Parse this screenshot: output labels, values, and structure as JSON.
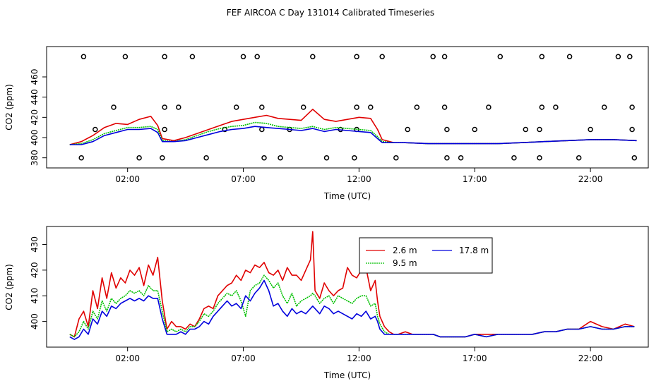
{
  "title": "FEF AIRCOA C  Day 131014  Calibrated Timeseries",
  "colors": {
    "red": "#e00000",
    "green": "#00c000",
    "blue": "#0000dd",
    "axis": "#000000",
    "marker": "#000000"
  },
  "chart_data": [
    {
      "type": "line",
      "xlabel": "Time (UTC)",
      "ylabel": "CO2 (ppm)",
      "xlim": [
        -1.5,
        24.5
      ],
      "ylim": [
        370,
        490
      ],
      "x_tick_values": [
        2,
        7,
        12,
        17,
        22
      ],
      "x_tick_labels": [
        "02:00",
        "07:00",
        "12:00",
        "17:00",
        "22:00"
      ],
      "y_tick_values": [
        380,
        400,
        420,
        440,
        460
      ],
      "y_tick_labels": [
        "380",
        "400",
        "420",
        "440",
        "460"
      ],
      "x": [
        -0.5,
        0.0,
        0.5,
        1.0,
        1.5,
        2.0,
        2.5,
        3.0,
        3.3,
        3.5,
        4.0,
        4.5,
        5.0,
        5.5,
        6.0,
        6.5,
        7.0,
        7.5,
        8.0,
        8.5,
        9.0,
        9.5,
        10.0,
        10.5,
        11.0,
        11.5,
        12.0,
        12.5,
        12.8,
        13.0,
        13.5,
        14.0,
        15.0,
        16.0,
        17.0,
        18.0,
        19.0,
        20.0,
        21.0,
        22.0,
        23.0,
        24.0
      ],
      "series": [
        {
          "color": "red",
          "values": [
            393,
            396,
            402,
            410,
            414,
            413,
            418,
            421,
            412,
            399,
            397,
            400,
            404,
            408,
            412,
            416,
            418,
            420,
            422,
            419,
            418,
            417,
            428,
            418,
            416,
            418,
            420,
            419,
            408,
            398,
            395,
            395,
            394,
            394,
            394,
            394,
            395,
            396,
            397,
            398,
            398,
            397
          ]
        },
        {
          "color": "green",
          "values": [
            393,
            394,
            398,
            404,
            407,
            410,
            410,
            411,
            408,
            397,
            396,
            398,
            402,
            406,
            409,
            411,
            412,
            415,
            414,
            411,
            410,
            409,
            411,
            408,
            410,
            409,
            408,
            407,
            401,
            396,
            395,
            395,
            394,
            394,
            394,
            394,
            395,
            396,
            397,
            398,
            398,
            397
          ]
        },
        {
          "color": "blue",
          "values": [
            393,
            393,
            396,
            402,
            405,
            408,
            408,
            409,
            405,
            396,
            396,
            397,
            400,
            403,
            406,
            408,
            409,
            411,
            410,
            409,
            408,
            407,
            409,
            406,
            408,
            407,
            406,
            405,
            399,
            395,
            395,
            395,
            394,
            394,
            394,
            394,
            395,
            396,
            397,
            398,
            398,
            397
          ]
        }
      ],
      "markers": {
        "symbol": "circle",
        "color": "marker",
        "points": [
          [
            0.1,
            480
          ],
          [
            1.9,
            480
          ],
          [
            3.6,
            480
          ],
          [
            4.8,
            480
          ],
          [
            7.0,
            480
          ],
          [
            7.6,
            480
          ],
          [
            10.0,
            480
          ],
          [
            11.9,
            480
          ],
          [
            13.0,
            480
          ],
          [
            15.2,
            480
          ],
          [
            15.7,
            480
          ],
          [
            18.1,
            480
          ],
          [
            19.9,
            480
          ],
          [
            21.1,
            480
          ],
          [
            23.2,
            480
          ],
          [
            23.7,
            480
          ],
          [
            1.4,
            430
          ],
          [
            3.6,
            430
          ],
          [
            4.2,
            430
          ],
          [
            6.7,
            430
          ],
          [
            7.8,
            430
          ],
          [
            9.6,
            430
          ],
          [
            11.9,
            430
          ],
          [
            12.5,
            430
          ],
          [
            14.5,
            430
          ],
          [
            15.7,
            430
          ],
          [
            17.6,
            430
          ],
          [
            19.9,
            430
          ],
          [
            20.5,
            430
          ],
          [
            22.6,
            430
          ],
          [
            23.8,
            430
          ],
          [
            0.6,
            408
          ],
          [
            3.6,
            408
          ],
          [
            6.2,
            408
          ],
          [
            7.8,
            408
          ],
          [
            9.0,
            408
          ],
          [
            11.2,
            408
          ],
          [
            11.9,
            408
          ],
          [
            14.1,
            408
          ],
          [
            15.8,
            408
          ],
          [
            17.0,
            408
          ],
          [
            19.2,
            408
          ],
          [
            19.8,
            408
          ],
          [
            22.0,
            408
          ],
          [
            23.8,
            408
          ],
          [
            0.0,
            380
          ],
          [
            2.5,
            380
          ],
          [
            3.5,
            380
          ],
          [
            5.4,
            380
          ],
          [
            7.9,
            380
          ],
          [
            8.6,
            380
          ],
          [
            10.6,
            380
          ],
          [
            11.8,
            380
          ],
          [
            13.6,
            380
          ],
          [
            15.8,
            380
          ],
          [
            16.4,
            380
          ],
          [
            18.7,
            380
          ],
          [
            19.8,
            380
          ],
          [
            21.5,
            380
          ],
          [
            23.9,
            380
          ]
        ]
      }
    },
    {
      "type": "line",
      "xlabel": "Time (UTC)",
      "ylabel": "CO2 (ppm)",
      "xlim": [
        -1.5,
        24.5
      ],
      "ylim": [
        390,
        437
      ],
      "x_tick_values": [
        2,
        7,
        12,
        17,
        22
      ],
      "x_tick_labels": [
        "02:00",
        "07:00",
        "12:00",
        "17:00",
        "22:00"
      ],
      "y_tick_values": [
        400,
        410,
        420,
        430
      ],
      "y_tick_labels": [
        "400",
        "410",
        "420",
        "430"
      ],
      "legend_position": "top-center",
      "x": [
        -0.5,
        -0.3,
        -0.1,
        0.1,
        0.3,
        0.5,
        0.7,
        0.9,
        1.1,
        1.3,
        1.5,
        1.7,
        1.9,
        2.1,
        2.3,
        2.5,
        2.7,
        2.9,
        3.1,
        3.3,
        3.5,
        3.7,
        3.9,
        4.1,
        4.3,
        4.5,
        4.7,
        4.9,
        5.1,
        5.3,
        5.5,
        5.7,
        5.9,
        6.1,
        6.3,
        6.5,
        6.7,
        6.9,
        7.1,
        7.3,
        7.5,
        7.7,
        7.9,
        8.1,
        8.3,
        8.5,
        8.7,
        8.9,
        9.1,
        9.3,
        9.5,
        9.7,
        9.9,
        10.0,
        10.1,
        10.3,
        10.5,
        10.7,
        10.9,
        11.1,
        11.3,
        11.5,
        11.7,
        11.9,
        12.1,
        12.3,
        12.5,
        12.7,
        12.8,
        12.9,
        13.1,
        13.3,
        13.5,
        13.7,
        14.0,
        14.3,
        14.6,
        14.9,
        15.2,
        15.5,
        15.8,
        16.2,
        16.6,
        17.0,
        17.5,
        18.0,
        18.5,
        19.0,
        19.5,
        20.0,
        20.5,
        21.0,
        21.5,
        22.0,
        22.5,
        23.0,
        23.5,
        23.9
      ],
      "series": [
        {
          "name": "2.6 m",
          "color": "red",
          "values": [
            395,
            394,
            401,
            404,
            398,
            412,
            405,
            417,
            409,
            419,
            413,
            417,
            415,
            420,
            418,
            421,
            414,
            422,
            418,
            425,
            408,
            397,
            400,
            398,
            398,
            397,
            399,
            398,
            401,
            405,
            406,
            405,
            410,
            412,
            414,
            415,
            418,
            416,
            420,
            419,
            422,
            421,
            423,
            419,
            418,
            420,
            416,
            421,
            418,
            418,
            416,
            420,
            424,
            435,
            412,
            409,
            415,
            412,
            410,
            412,
            413,
            421,
            418,
            417,
            420,
            421,
            412,
            416,
            408,
            402,
            398,
            396,
            395,
            395,
            396,
            395,
            395,
            395,
            395,
            394,
            394,
            394,
            394,
            395,
            395,
            395,
            395,
            395,
            395,
            396,
            396,
            397,
            397,
            400,
            398,
            397,
            399,
            398
          ]
        },
        {
          "name": "9.5 m",
          "color": "green",
          "values": [
            395,
            394,
            396,
            400,
            397,
            404,
            401,
            408,
            404,
            409,
            407,
            409,
            410,
            412,
            411,
            412,
            410,
            414,
            412,
            412,
            404,
            396,
            397,
            396,
            397,
            396,
            398,
            398,
            400,
            403,
            402,
            404,
            407,
            409,
            411,
            410,
            412,
            408,
            402,
            412,
            414,
            415,
            418,
            416,
            413,
            415,
            410,
            407,
            411,
            406,
            408,
            409,
            410,
            411,
            410,
            407,
            409,
            410,
            407,
            410,
            409,
            408,
            407,
            409,
            410,
            410,
            406,
            407,
            402,
            399,
            396,
            395,
            395,
            395,
            395,
            395,
            395,
            395,
            395,
            394,
            394,
            394,
            394,
            395,
            394,
            395,
            395,
            395,
            395,
            396,
            396,
            397,
            397,
            398,
            397,
            397,
            398,
            398
          ]
        },
        {
          "name": "17.8 m",
          "color": "blue",
          "values": [
            394,
            393,
            394,
            397,
            395,
            401,
            399,
            404,
            402,
            406,
            405,
            407,
            408,
            409,
            408,
            409,
            408,
            410,
            409,
            409,
            401,
            395,
            395,
            395,
            396,
            395,
            397,
            397,
            398,
            400,
            399,
            402,
            404,
            406,
            408,
            406,
            407,
            405,
            410,
            408,
            411,
            413,
            416,
            412,
            406,
            407,
            404,
            402,
            405,
            403,
            404,
            403,
            405,
            406,
            405,
            403,
            406,
            405,
            403,
            404,
            403,
            402,
            401,
            403,
            402,
            404,
            401,
            402,
            400,
            397,
            395,
            395,
            395,
            395,
            395,
            395,
            395,
            395,
            395,
            394,
            394,
            394,
            394,
            395,
            394,
            395,
            395,
            395,
            395,
            396,
            396,
            397,
            397,
            398,
            397,
            397,
            398,
            398
          ]
        }
      ]
    }
  ]
}
